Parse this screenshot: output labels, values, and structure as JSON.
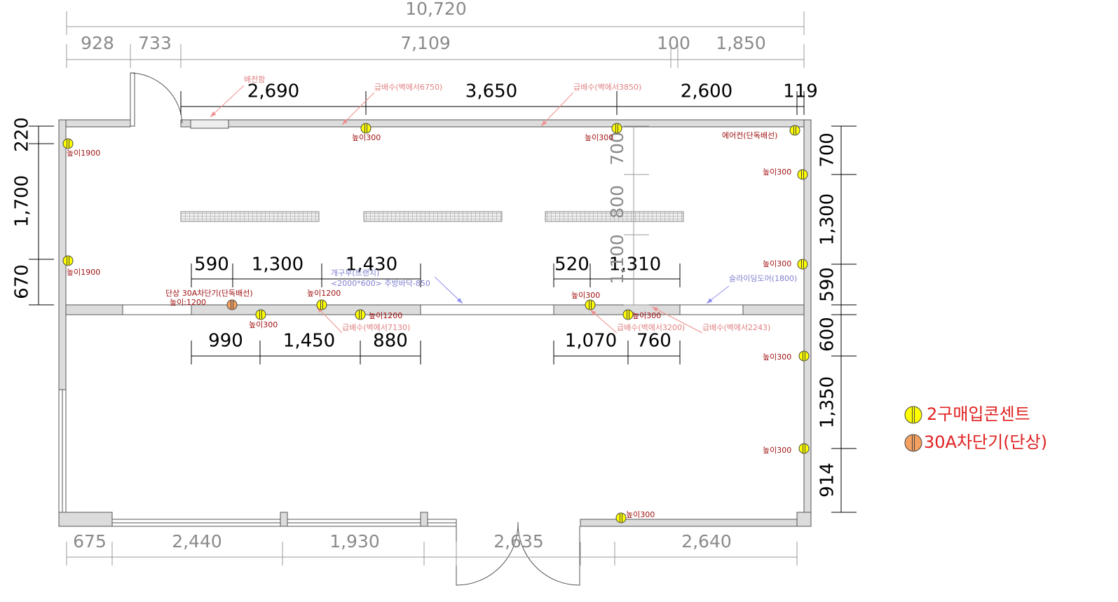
{
  "dimensions": {
    "top_overall": "10,720",
    "top_row": [
      "928",
      "733",
      "7,109",
      "100",
      "1,850"
    ],
    "top_inner": [
      "2,690",
      "3,650",
      "2,600",
      "119"
    ],
    "left": [
      "220",
      "1,700",
      "670"
    ],
    "right": [
      "700",
      "1,300",
      "590",
      "600",
      "1,350",
      "914"
    ],
    "interior_upper": [
      "590",
      "1,300",
      "1,430",
      "520",
      "1,310"
    ],
    "interior_lower": [
      "990",
      "1,450",
      "880",
      "1,070",
      "760"
    ],
    "interior_vertical": [
      "700",
      "800",
      "1,100"
    ],
    "bottom": [
      "675",
      "2,440",
      "1,930",
      "2,635",
      "2,640"
    ]
  },
  "notes": {
    "distribution_board": "배전함",
    "plumbing": [
      "급배수(벽에서6750)",
      "급배수(벽에서3850)",
      "급배수(벽에서7130)",
      "급배수(벽에서3200)",
      "급배수(벽에서2243)"
    ],
    "air_conditioner": "에어컨(단독배선)",
    "trench": [
      "개구부(트랜치)",
      "<2000*600> 주방바닥-850"
    ],
    "sliding_door": "슬라이딩도어(1800)",
    "breaker": [
      "단상 30A차단기(단독배선)",
      "높이:1200"
    ]
  },
  "outlet_heights": [
    "높이1900",
    "높이1900",
    "높이300",
    "높이300",
    "높이300",
    "높이300",
    "높이1200",
    "높이300",
    "높이1200",
    "높이300",
    "높이300",
    "높이300",
    "높이300",
    "높이300"
  ],
  "legend": [
    "2구매입콘센트",
    "30A차단기(단상)"
  ]
}
